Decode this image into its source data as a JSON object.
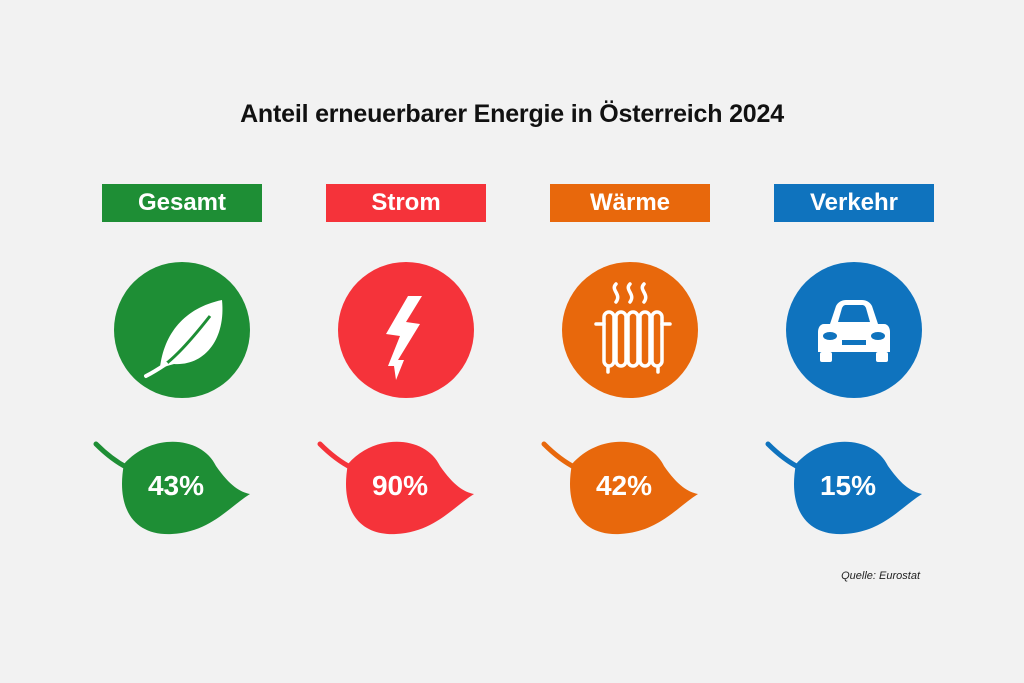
{
  "title": "Anteil erneuerbarer Energie in Österreich 2024",
  "source": "Quelle: Eurostat",
  "chart_data": {
    "type": "bar",
    "title": "Anteil erneuerbarer Energie in Österreich 2024",
    "categories": [
      "Gesamt",
      "Strom",
      "Wärme",
      "Verkehr"
    ],
    "values": [
      43,
      90,
      42,
      15
    ],
    "value_labels": [
      "43%",
      "90%",
      "42%",
      "15%"
    ],
    "unit": "%"
  },
  "categories": [
    {
      "label": "Gesamt",
      "value_label": "43%",
      "icon": "leaf-icon",
      "color": "#1e8e35"
    },
    {
      "label": "Strom",
      "value_label": "90%",
      "icon": "lightning-icon",
      "color": "#f5333a"
    },
    {
      "label": "Wärme",
      "value_label": "42%",
      "icon": "radiator-icon",
      "color": "#e8680c"
    },
    {
      "label": "Verkehr",
      "value_label": "15%",
      "icon": "car-icon",
      "color": "#0f73be"
    }
  ]
}
